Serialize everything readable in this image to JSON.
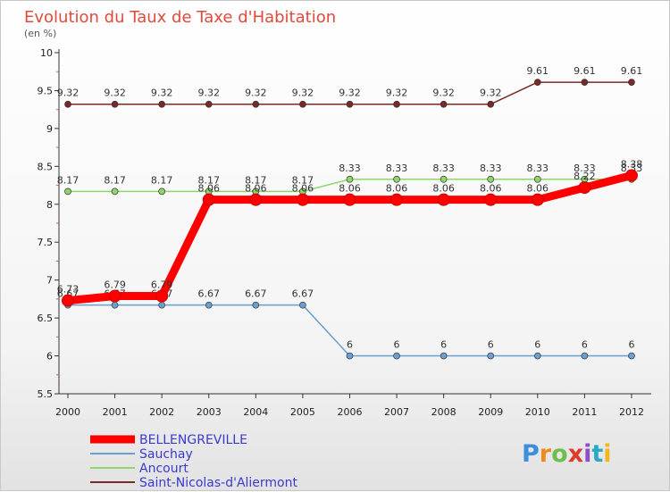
{
  "chart_data": {
    "type": "line",
    "title": "Evolution du Taux de Taxe d'Habitation",
    "subtitle": "(en %)",
    "x": [
      "2000",
      "2001",
      "2002",
      "2003",
      "2004",
      "2005",
      "2006",
      "2007",
      "2008",
      "2009",
      "2010",
      "2011",
      "2012"
    ],
    "ylim": [
      5.5,
      10
    ],
    "yticks": [
      "5.5",
      "6",
      "6.5",
      "7",
      "7.5",
      "8",
      "8.5",
      "9",
      "9.5",
      "10"
    ],
    "series": [
      {
        "name": "Saint-Nicolas-d'Aliermont",
        "color": "#7a2828",
        "values": [
          9.32,
          9.32,
          9.32,
          9.32,
          9.32,
          9.32,
          9.32,
          9.32,
          9.32,
          9.32,
          9.61,
          9.61,
          9.61
        ],
        "labels": [
          "9.32",
          "9.32",
          "9.32",
          "9.32",
          "9.32",
          "9.32",
          "9.32",
          "9.32",
          "9.32",
          "9.32",
          "9.61",
          "9.61",
          "9.61"
        ]
      },
      {
        "name": "Ancourt",
        "color": "#8fd66a",
        "values": [
          8.17,
          8.17,
          8.17,
          8.17,
          8.17,
          8.17,
          8.33,
          8.33,
          8.33,
          8.33,
          8.33,
          8.33,
          8.33
        ],
        "labels": [
          "8.17",
          "8.17",
          "8.17",
          "8.17",
          "8.17",
          "8.17",
          "8.33",
          "8.33",
          "8.33",
          "8.33",
          "8.33",
          "8.33",
          "8.33"
        ]
      },
      {
        "name": "Sauchay",
        "color": "#6a9fd0",
        "values": [
          6.67,
          6.67,
          6.67,
          6.67,
          6.67,
          6.67,
          6,
          6,
          6,
          6,
          6,
          6,
          6
        ],
        "labels": [
          "6.67",
          "6.67",
          "6.67",
          "6.67",
          "6.67",
          "6.67",
          "6",
          "6",
          "6",
          "6",
          "6",
          "6",
          "6"
        ]
      },
      {
        "name": "BELLENGREVILLE",
        "color": "#ff0000",
        "values": [
          6.73,
          6.79,
          6.79,
          8.06,
          8.06,
          8.06,
          8.06,
          8.06,
          8.06,
          8.06,
          8.06,
          8.22,
          8.38
        ],
        "labels": [
          "6.73",
          "6.79",
          "6.79",
          "8.06",
          "8.06",
          "8.06",
          "8.06",
          "8.06",
          "8.06",
          "8.06",
          "8.06",
          "8.22",
          "8.38"
        ]
      }
    ],
    "legend": [
      "BELLENGREVILLE",
      "Sauchay",
      "Ancourt",
      "Saint-Nicolas-d'Aliermont"
    ],
    "grid": false
  },
  "brand": {
    "logo_text": "Proxiti",
    "letters": [
      "P",
      "r",
      "o",
      "x",
      "i",
      "t",
      "i"
    ],
    "colors": [
      "#3c8fd8",
      "#f08a1c",
      "#6cc04a",
      "#e03a2a",
      "#8a4ec8",
      "#2aa8c8",
      "#f0b81c"
    ]
  }
}
